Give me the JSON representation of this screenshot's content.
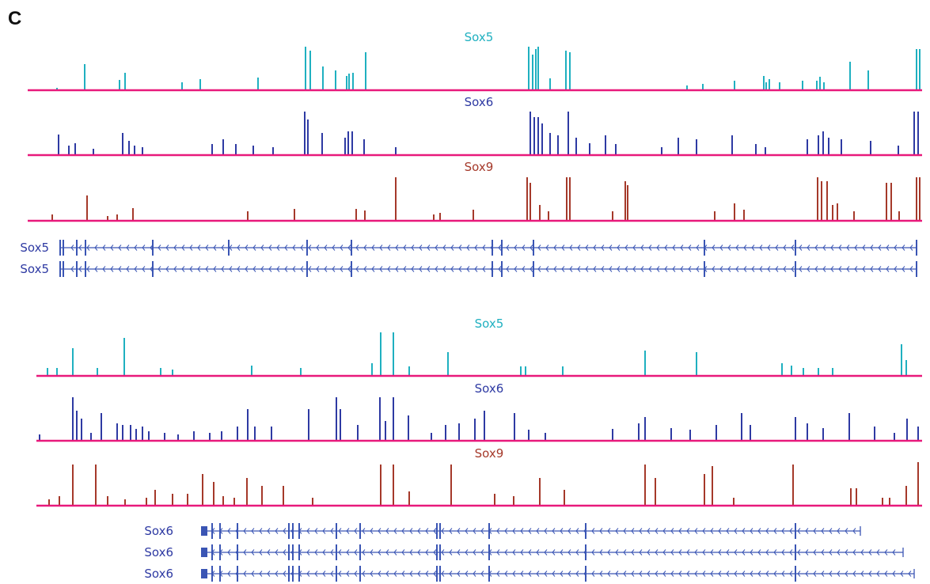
{
  "panel_label": "C",
  "colors": {
    "sox5": "#1fb0c0",
    "sox6": "#2e3aa3",
    "sox9": "#a5392a",
    "baseline": "#e8197b",
    "gene": "#3a55b4"
  },
  "sections": [
    {
      "id": "sox5-locus",
      "tracks": [
        {
          "name": "Sox5",
          "color_key": "sox5",
          "peaks": [
            [
              72,
              3
            ],
            [
              107,
              33
            ],
            [
              151,
              13
            ],
            [
              158,
              22
            ],
            [
              230,
              10
            ],
            [
              253,
              14
            ],
            [
              326,
              16
            ],
            [
              386,
              55
            ],
            [
              392,
              50
            ],
            [
              408,
              30
            ],
            [
              424,
              25
            ],
            [
              438,
              18
            ],
            [
              441,
              21
            ],
            [
              446,
              22
            ],
            [
              462,
              48
            ],
            [
              668,
              55
            ],
            [
              673,
              45
            ],
            [
              677,
              52
            ],
            [
              680,
              55
            ],
            [
              695,
              15
            ],
            [
              715,
              50
            ],
            [
              720,
              48
            ],
            [
              868,
              6
            ],
            [
              888,
              8
            ],
            [
              928,
              12
            ],
            [
              965,
              18
            ],
            [
              968,
              10
            ],
            [
              972,
              14
            ],
            [
              985,
              10
            ],
            [
              1014,
              12
            ],
            [
              1032,
              12
            ],
            [
              1036,
              17
            ],
            [
              1041,
              10
            ],
            [
              1074,
              36
            ],
            [
              1097,
              25
            ],
            [
              1158,
              52
            ],
            [
              1162,
              52
            ]
          ]
        },
        {
          "name": "Sox6",
          "color_key": "sox6",
          "peaks": [
            [
              74,
              26
            ],
            [
              87,
              12
            ],
            [
              95,
              15
            ],
            [
              118,
              8
            ],
            [
              155,
              28
            ],
            [
              163,
              18
            ],
            [
              170,
              12
            ],
            [
              180,
              10
            ],
            [
              268,
              14
            ],
            [
              282,
              20
            ],
            [
              298,
              14
            ],
            [
              320,
              12
            ],
            [
              345,
              10
            ],
            [
              385,
              55
            ],
            [
              389,
              45
            ],
            [
              407,
              28
            ],
            [
              436,
              22
            ],
            [
              440,
              30
            ],
            [
              445,
              30
            ],
            [
              460,
              20
            ],
            [
              500,
              10
            ],
            [
              670,
              55
            ],
            [
              675,
              48
            ],
            [
              680,
              48
            ],
            [
              685,
              40
            ],
            [
              695,
              28
            ],
            [
              705,
              25
            ],
            [
              718,
              55
            ],
            [
              728,
              22
            ],
            [
              745,
              15
            ],
            [
              765,
              25
            ],
            [
              778,
              14
            ],
            [
              836,
              10
            ],
            [
              857,
              22
            ],
            [
              880,
              20
            ],
            [
              925,
              25
            ],
            [
              955,
              14
            ],
            [
              967,
              10
            ],
            [
              1020,
              20
            ],
            [
              1034,
              25
            ],
            [
              1040,
              30
            ],
            [
              1047,
              22
            ],
            [
              1063,
              20
            ],
            [
              1100,
              18
            ],
            [
              1135,
              12
            ],
            [
              1155,
              55
            ],
            [
              1160,
              55
            ]
          ]
        },
        {
          "name": "Sox9",
          "color_key": "sox9",
          "peaks": [
            [
              66,
              8
            ],
            [
              110,
              32
            ],
            [
              136,
              6
            ],
            [
              148,
              8
            ],
            [
              168,
              16
            ],
            [
              313,
              12
            ],
            [
              372,
              15
            ],
            [
              450,
              15
            ],
            [
              461,
              13
            ],
            [
              500,
              55
            ],
            [
              548,
              8
            ],
            [
              556,
              10
            ],
            [
              598,
              14
            ],
            [
              666,
              55
            ],
            [
              670,
              48
            ],
            [
              682,
              20
            ],
            [
              693,
              12
            ],
            [
              716,
              55
            ],
            [
              720,
              55
            ],
            [
              774,
              12
            ],
            [
              790,
              50
            ],
            [
              793,
              45
            ],
            [
              903,
              12
            ],
            [
              928,
              22
            ],
            [
              940,
              14
            ],
            [
              1033,
              55
            ],
            [
              1038,
              50
            ],
            [
              1045,
              50
            ],
            [
              1052,
              20
            ],
            [
              1058,
              22
            ],
            [
              1079,
              12
            ],
            [
              1120,
              48
            ],
            [
              1126,
              48
            ],
            [
              1136,
              12
            ],
            [
              1158,
              55
            ],
            [
              1162,
              55
            ]
          ]
        }
      ],
      "genes": [
        {
          "label": "Sox5",
          "exons": [
            76,
            80,
            97,
            108,
            193,
            289,
            388,
            444,
            622,
            634,
            674,
            890,
            1005,
            1158
          ]
        },
        {
          "label": "Sox5",
          "exons": [
            76,
            80,
            97,
            108,
            193,
            388,
            444,
            622,
            634,
            674,
            890,
            1005,
            1158
          ]
        }
      ]
    },
    {
      "id": "sox6-locus",
      "tracks": [
        {
          "name": "Sox5",
          "color_key": "sox5",
          "peaks": [
            [
              60,
              10
            ],
            [
              72,
              10
            ],
            [
              92,
              35
            ],
            [
              123,
              10
            ],
            [
              157,
              48
            ],
            [
              203,
              10
            ],
            [
              218,
              8
            ],
            [
              318,
              13
            ],
            [
              380,
              10
            ],
            [
              470,
              16
            ],
            [
              481,
              55
            ],
            [
              497,
              55
            ],
            [
              517,
              12
            ],
            [
              566,
              30
            ],
            [
              658,
              12
            ],
            [
              664,
              12
            ],
            [
              711,
              12
            ],
            [
              815,
              32
            ],
            [
              880,
              30
            ],
            [
              988,
              16
            ],
            [
              1000,
              13
            ],
            [
              1015,
              10
            ],
            [
              1034,
              10
            ],
            [
              1052,
              10
            ],
            [
              1139,
              40
            ],
            [
              1145,
              20
            ]
          ]
        },
        {
          "name": "Sox6",
          "color_key": "sox6",
          "peaks": [
            [
              50,
              8
            ],
            [
              92,
              55
            ],
            [
              97,
              38
            ],
            [
              103,
              28
            ],
            [
              115,
              10
            ],
            [
              128,
              35
            ],
            [
              148,
              22
            ],
            [
              155,
              20
            ],
            [
              165,
              20
            ],
            [
              172,
              15
            ],
            [
              180,
              18
            ],
            [
              188,
              12
            ],
            [
              208,
              10
            ],
            [
              225,
              8
            ],
            [
              245,
              12
            ],
            [
              265,
              10
            ],
            [
              280,
              12
            ],
            [
              300,
              18
            ],
            [
              313,
              40
            ],
            [
              322,
              18
            ],
            [
              343,
              18
            ],
            [
              390,
              40
            ],
            [
              425,
              55
            ],
            [
              430,
              40
            ],
            [
              452,
              20
            ],
            [
              480,
              55
            ],
            [
              487,
              25
            ],
            [
              497,
              55
            ],
            [
              516,
              32
            ],
            [
              545,
              10
            ],
            [
              563,
              20
            ],
            [
              580,
              22
            ],
            [
              600,
              28
            ],
            [
              612,
              38
            ],
            [
              650,
              35
            ],
            [
              668,
              14
            ],
            [
              689,
              10
            ],
            [
              774,
              15
            ],
            [
              807,
              22
            ],
            [
              815,
              30
            ],
            [
              848,
              16
            ],
            [
              872,
              14
            ],
            [
              905,
              20
            ],
            [
              937,
              35
            ],
            [
              948,
              20
            ],
            [
              1005,
              30
            ],
            [
              1020,
              22
            ],
            [
              1040,
              16
            ],
            [
              1073,
              35
            ],
            [
              1105,
              18
            ],
            [
              1130,
              10
            ],
            [
              1146,
              28
            ],
            [
              1160,
              18
            ]
          ]
        },
        {
          "name": "Sox9",
          "color_key": "sox9",
          "peaks": [
            [
              62,
              8
            ],
            [
              75,
              12
            ],
            [
              92,
              52
            ],
            [
              121,
              52
            ],
            [
              136,
              12
            ],
            [
              158,
              8
            ],
            [
              185,
              10
            ],
            [
              196,
              20
            ],
            [
              218,
              15
            ],
            [
              237,
              15
            ],
            [
              256,
              40
            ],
            [
              270,
              30
            ],
            [
              282,
              12
            ],
            [
              296,
              10
            ],
            [
              312,
              35
            ],
            [
              331,
              25
            ],
            [
              358,
              25
            ],
            [
              395,
              10
            ],
            [
              481,
              52
            ],
            [
              497,
              52
            ],
            [
              517,
              18
            ],
            [
              570,
              52
            ],
            [
              625,
              15
            ],
            [
              649,
              12
            ],
            [
              682,
              35
            ],
            [
              713,
              20
            ],
            [
              815,
              52
            ],
            [
              828,
              35
            ],
            [
              890,
              40
            ],
            [
              900,
              50
            ],
            [
              927,
              10
            ],
            [
              1002,
              52
            ],
            [
              1075,
              22
            ],
            [
              1082,
              22
            ],
            [
              1115,
              10
            ],
            [
              1124,
              10
            ],
            [
              1145,
              25
            ],
            [
              1160,
              55
            ]
          ]
        }
      ],
      "genes": [
        {
          "label": "Sox6",
          "start": 254,
          "end": 1087,
          "exons": [
            268,
            278,
            300,
            365,
            370,
            378,
            425,
            455,
            552,
            556,
            618,
            740,
            1005
          ]
        },
        {
          "label": "Sox6",
          "start": 254,
          "end": 1141,
          "exons": [
            268,
            278,
            300,
            365,
            370,
            378,
            425,
            455,
            552,
            556,
            618,
            740,
            1005
          ]
        },
        {
          "label": "Sox6",
          "start": 254,
          "end": 1155,
          "exons": [
            268,
            278,
            300,
            365,
            370,
            378,
            425,
            455,
            552,
            556,
            618,
            740,
            1005
          ]
        }
      ]
    }
  ]
}
